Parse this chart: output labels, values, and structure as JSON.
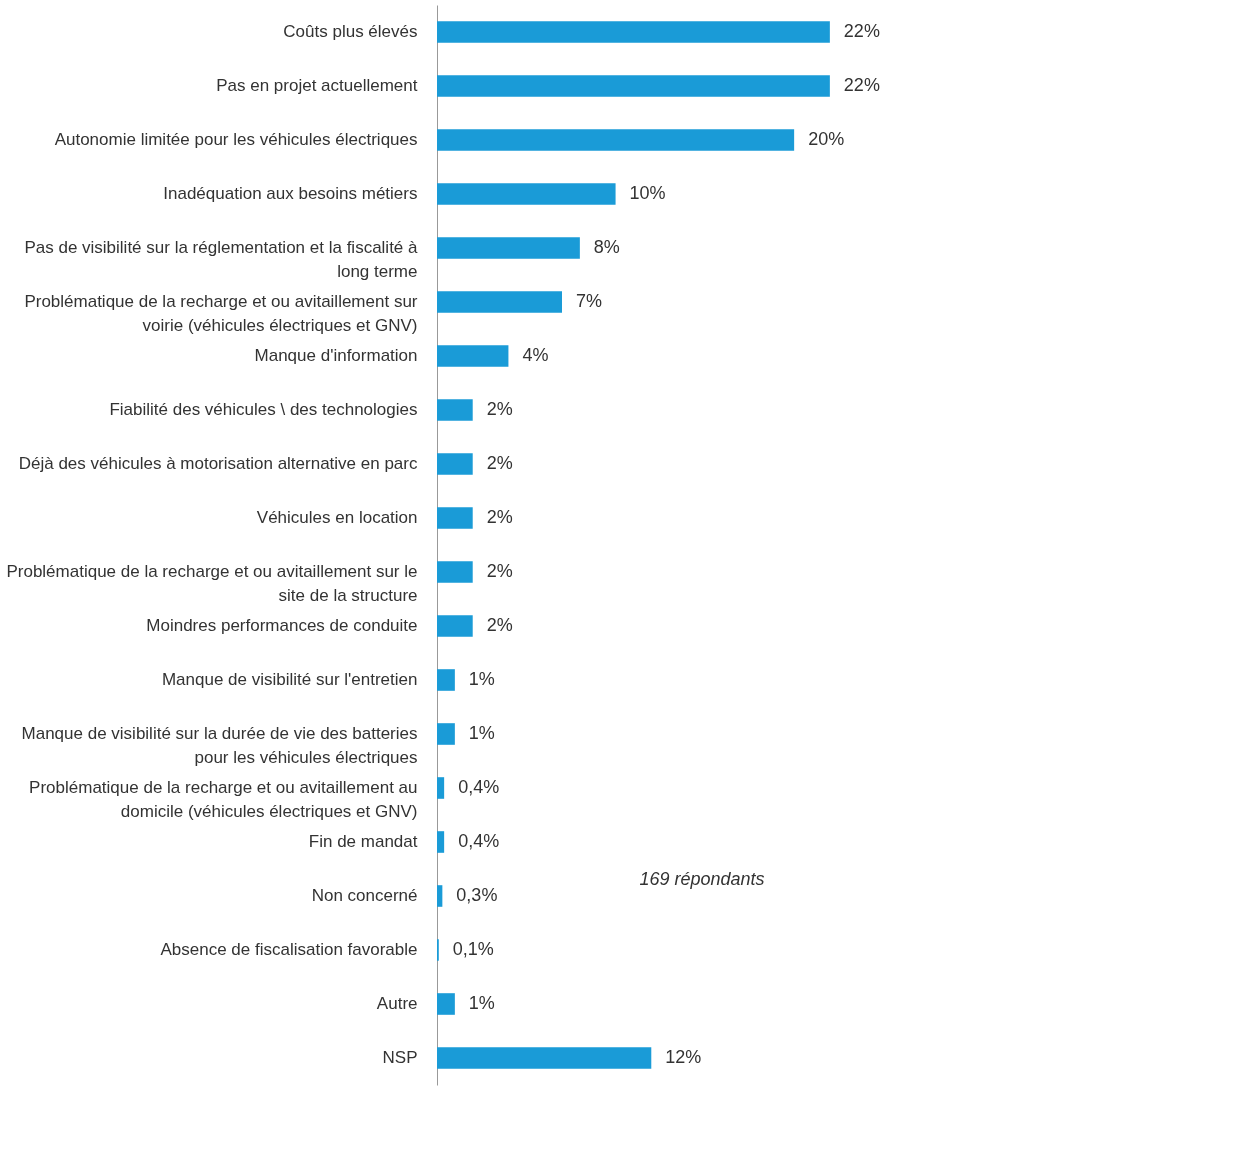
{
  "chart_data": {
    "type": "bar",
    "orientation": "horizontal",
    "categories": [
      "Coûts plus élevés",
      "Pas en projet actuellement",
      "Autonomie limitée pour les véhicules électriques",
      "Inadéquation aux besoins métiers",
      "Pas de visibilité sur la réglementation et la fiscalité à long terme",
      "Problématique de la recharge et ou avitaillement sur voirie (véhicules électriques et GNV)",
      "Manque d'information",
      "Fiabilité des véhicules \\ des technologies",
      "Déjà des véhicules à motorisation alternative en parc",
      "Véhicules en location",
      "Problématique de la recharge et ou avitaillement sur le site de la structure",
      "Moindres performances de conduite",
      "Manque de visibilité sur l'entretien",
      "Manque de visibilité sur la durée de vie des batteries pour les véhicules électriques",
      "Problématique de la recharge et ou avitaillement au domicile (véhicules électriques et GNV)",
      "Fin de mandat",
      "Non concerné",
      "Absence de fiscalisation favorable",
      "Autre",
      "NSP"
    ],
    "values": [
      22,
      22,
      20,
      10,
      8,
      7,
      4,
      2,
      2,
      2,
      2,
      2,
      1,
      1,
      0.4,
      0.4,
      0.3,
      0.1,
      1,
      12
    ],
    "value_labels": [
      "22%",
      "22%",
      "20%",
      "10%",
      "8%",
      "7%",
      "4%",
      "2%",
      "2%",
      "2%",
      "2%",
      "2%",
      "1%",
      "1%",
      "0,4%",
      "0,4%",
      "0,3%",
      "0,1%",
      "1%",
      "12%"
    ],
    "color": "#1a9bd7",
    "annotations": [
      "169 répondants"
    ]
  }
}
